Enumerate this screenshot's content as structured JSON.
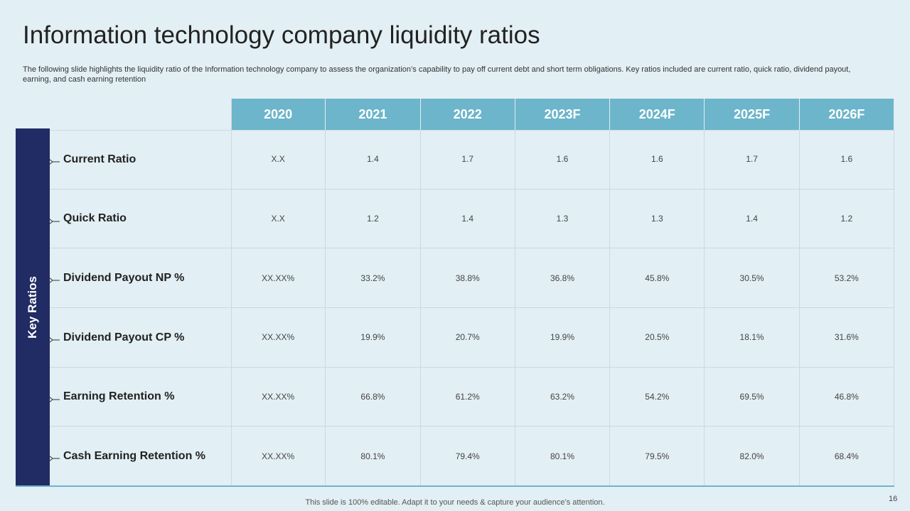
{
  "header": {
    "title": "Information technology company liquidity ratios",
    "subtitle": "The following slide highlights the liquidity ratio of the Information technology company to assess the organization’s capability to pay off current debt and short term obligations. Key ratios included are current ratio, quick ratio, dividend payout, earning, and cash earning retention"
  },
  "table": {
    "side_label": "Key Ratios",
    "columns": [
      "2020",
      "2021",
      "2022",
      "2023F",
      "2024F",
      "2025F",
      "2026F"
    ],
    "rows": [
      {
        "label": "Current Ratio",
        "cells": [
          "X.X",
          "1.4",
          "1.7",
          "1.6",
          "1.6",
          "1.7",
          "1.6"
        ]
      },
      {
        "label": "Quick Ratio",
        "cells": [
          "X.X",
          "1.2",
          "1.4",
          "1.3",
          "1.3",
          "1.4",
          "1.2"
        ]
      },
      {
        "label": "Dividend Payout NP %",
        "cells": [
          "XX.XX%",
          "33.2%",
          "38.8%",
          "36.8%",
          "45.8%",
          "30.5%",
          "53.2%"
        ]
      },
      {
        "label": "Dividend Payout CP %",
        "cells": [
          "XX.XX%",
          "19.9%",
          "20.7%",
          "19.9%",
          "20.5%",
          "18.1%",
          "31.6%"
        ]
      },
      {
        "label": "Earning Retention %",
        "cells": [
          "XX.XX%",
          "66.8%",
          "61.2%",
          "63.2%",
          "54.2%",
          "69.5%",
          "46.8%"
        ]
      },
      {
        "label": "Cash Earning Retention %",
        "cells": [
          "XX.XX%",
          "80.1%",
          "79.4%",
          "80.1%",
          "79.5%",
          "82.0%",
          "68.4%"
        ]
      }
    ]
  },
  "footer": {
    "note": "This slide is 100% editable. Adapt it to your needs & capture your audience’s attention.",
    "page": "16"
  }
}
